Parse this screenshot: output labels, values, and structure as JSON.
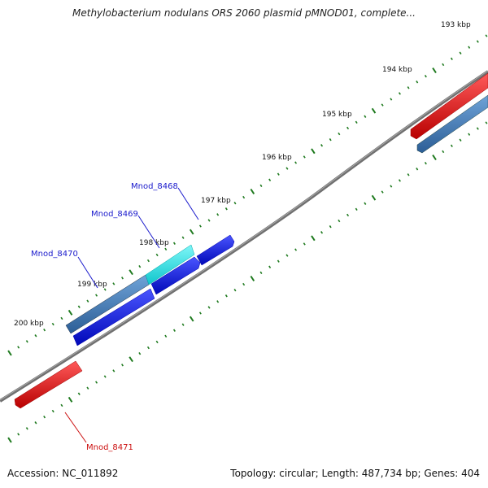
{
  "title": "Methylobacterium nodulans ORS 2060 plasmid pMNOD01, complete...",
  "footer": {
    "accession": "Accession: NC_011892",
    "summary": "Topology: circular; Length: 487,734 bp; Genes: 404"
  },
  "colors": {
    "backbone": "#7a7a7a",
    "tick": "#1f7a1f",
    "gene_blue": "#0a14e6",
    "gene_steel": "#3f7fc1",
    "gene_cyan": "#18e8ee",
    "gene_red": "#ee1111",
    "label_blue": "#1a1acc",
    "label_red": "#cc1111"
  },
  "ticks": [
    {
      "label": "193 kbp"
    },
    {
      "label": "194 kbp"
    },
    {
      "label": "195 kbp"
    },
    {
      "label": "196 kbp"
    },
    {
      "label": "197 kbp"
    },
    {
      "label": "198 kbp"
    },
    {
      "label": "199 kbp"
    },
    {
      "label": "200 kbp"
    }
  ],
  "gene_labels": [
    {
      "name": "Mnod_8468"
    },
    {
      "name": "Mnod_8469"
    },
    {
      "name": "Mnod_8470"
    },
    {
      "name": "Mnod_8471"
    }
  ]
}
